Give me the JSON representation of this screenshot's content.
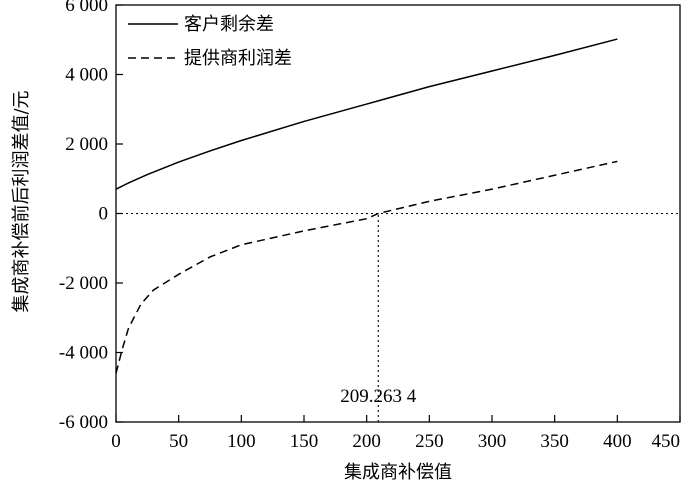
{
  "chart_data": {
    "type": "line",
    "xlabel": "集成商补偿值",
    "ylabel": "集成商补偿前后利润差值/元",
    "xlim": [
      0,
      450
    ],
    "ylim": [
      -6000,
      6000
    ],
    "x_ticks": [
      0,
      50,
      100,
      150,
      200,
      250,
      300,
      350,
      400,
      450
    ],
    "x_tick_labels": [
      "0",
      "50",
      "100",
      "150",
      "200",
      "250",
      "300",
      "350",
      "400",
      "450"
    ],
    "y_ticks": [
      6000,
      4000,
      2000,
      0,
      -2000,
      -4000,
      -6000
    ],
    "y_tick_labels": [
      "6 000",
      "4 000",
      "2 000",
      "0",
      "-2 000",
      "-4 000",
      "-6 000"
    ],
    "grid": false,
    "legend_position": "top-left",
    "series": [
      {
        "name": "客户剩余差",
        "style": "solid",
        "color": "#000000",
        "x": [
          0,
          10,
          25,
          50,
          75,
          100,
          150,
          200,
          250,
          300,
          350,
          400
        ],
        "y": [
          700,
          880,
          1120,
          1480,
          1800,
          2100,
          2650,
          3150,
          3650,
          4100,
          4550,
          5020
        ]
      },
      {
        "name": "提供商利润差",
        "style": "dashed",
        "color": "#000000",
        "x": [
          0,
          5,
          10,
          20,
          30,
          50,
          75,
          100,
          150,
          200,
          209.2634,
          250,
          300,
          350,
          400
        ],
        "y": [
          -4600,
          -3900,
          -3300,
          -2600,
          -2200,
          -1750,
          -1250,
          -900,
          -500,
          -150,
          0,
          350,
          700,
          1100,
          1500
        ]
      }
    ],
    "reference_lines": [
      {
        "orientation": "horizontal",
        "value": 0,
        "style": "dotted"
      },
      {
        "orientation": "vertical",
        "value": 209.2634,
        "style": "dotted",
        "from": -6000,
        "to": 0
      }
    ],
    "annotations": [
      {
        "text": "209.263 4",
        "x": 209.2634
      }
    ]
  }
}
